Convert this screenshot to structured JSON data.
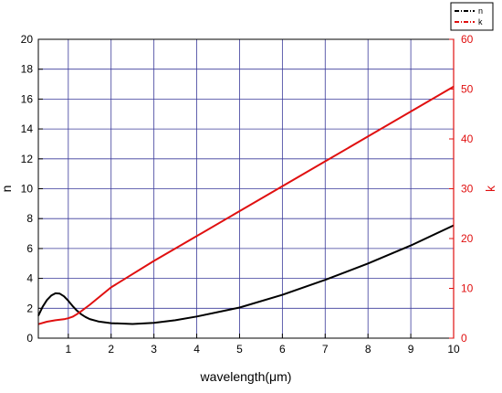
{
  "chart_data": {
    "type": "line",
    "xlabel": "wavelength(μm)",
    "ylabel_left": "n",
    "ylabel_right": "k",
    "xlim": [
      0.3,
      10
    ],
    "ylim_left": [
      0,
      20
    ],
    "ylim_right": [
      0,
      60
    ],
    "x_ticks": [
      1,
      2,
      3,
      4,
      5,
      6,
      7,
      8,
      9,
      10
    ],
    "y_left_ticks": [
      0,
      2,
      4,
      6,
      8,
      10,
      12,
      14,
      16,
      18,
      20
    ],
    "y_right_ticks": [
      0,
      10,
      20,
      30,
      40,
      50,
      60
    ],
    "grid": true,
    "legend_position": "top-right",
    "colors": {
      "n": "#000000",
      "k": "#e01010",
      "grid": "#3a3a9a",
      "right_axis": "#e01010"
    },
    "series": [
      {
        "name": "n",
        "axis": "left",
        "x": [
          0.3,
          0.4,
          0.5,
          0.6,
          0.7,
          0.8,
          0.9,
          1.0,
          1.1,
          1.2,
          1.3,
          1.4,
          1.5,
          1.7,
          2.0,
          2.5,
          3.0,
          3.5,
          4.0,
          5.0,
          6.0,
          7.0,
          8.0,
          9.0,
          10.0
        ],
        "values": [
          1.5,
          2.1,
          2.55,
          2.85,
          3.0,
          2.98,
          2.8,
          2.5,
          2.15,
          1.85,
          1.6,
          1.42,
          1.28,
          1.12,
          1.0,
          0.95,
          1.02,
          1.2,
          1.45,
          2.05,
          2.9,
          3.9,
          5.0,
          6.2,
          7.55
        ]
      },
      {
        "name": "k",
        "axis": "right",
        "x": [
          0.3,
          0.5,
          0.7,
          0.9,
          1.0,
          1.1,
          1.2,
          1.3,
          1.5,
          2.0,
          3.0,
          4.0,
          5.0,
          6.0,
          7.0,
          8.0,
          9.0,
          10.0
        ],
        "values": [
          2.8,
          3.3,
          3.6,
          3.8,
          4.0,
          4.3,
          4.8,
          5.4,
          6.7,
          10.2,
          15.5,
          20.5,
          25.5,
          30.5,
          35.5,
          40.5,
          45.5,
          50.5
        ]
      }
    ],
    "legend": [
      {
        "label": "n"
      },
      {
        "label": "k"
      }
    ]
  }
}
